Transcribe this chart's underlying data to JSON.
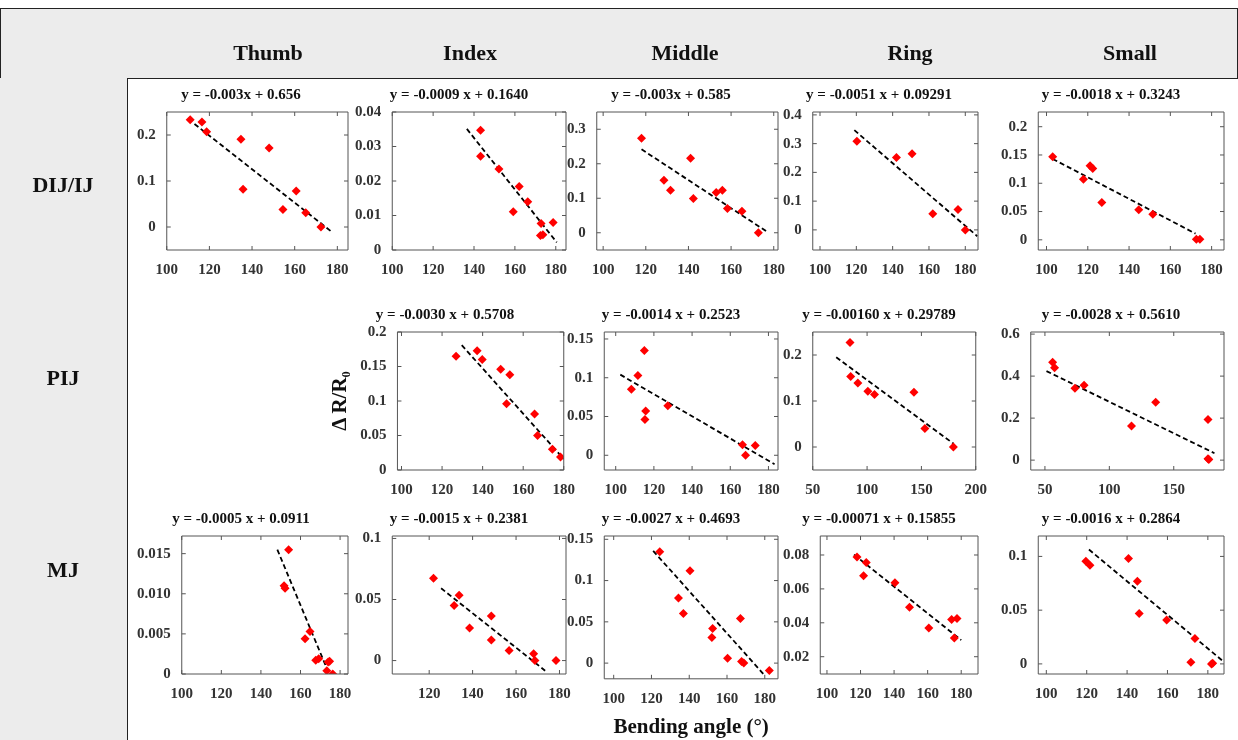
{
  "chart_data": [
    {
      "type": "other",
      "annotations": [
        "Thumb",
        "Index",
        "Middle",
        "Ring",
        "Small"
      ]
    },
    {
      "type": "other",
      "annotations": [
        "DIJ/IJ",
        "PIJ",
        "MJ"
      ]
    },
    {
      "type": "scatter",
      "title": "y = -0.003x + 0.656",
      "marker": "diamond",
      "xlim": [
        100,
        185
      ],
      "xticks": [
        100,
        120,
        140,
        160,
        180
      ],
      "ylim": [
        -0.05,
        0.25
      ],
      "yticks": [
        0,
        0.1,
        0.2
      ],
      "series": [
        {
          "color": "#ff0000",
          "x": [
            111,
            116.5,
            118.7,
            134.8,
            148,
            135.8,
            160.7,
            154.5,
            165.2,
            172.3
          ],
          "values": [
            0.233,
            0.228,
            0.207,
            0.191,
            0.172,
            0.082,
            0.078,
            0.038,
            0.031,
            0
          ]
        },
        {
          "type": "line",
          "color": "#000000",
          "marker": "none",
          "line_style": "dashed",
          "x": [
            113,
            177.5
          ],
          "values": [
            0.224,
            -0.011
          ]
        }
      ]
    },
    {
      "type": "scatter",
      "title": "y = -0.0009 x + 0.1640",
      "marker": "diamond",
      "xlim": [
        100,
        185
      ],
      "xticks": [
        100,
        120,
        140,
        160,
        180
      ],
      "ylim": [
        0,
        0.04
      ],
      "yticks": [
        0,
        0.01,
        0.02,
        0.03,
        0.04
      ],
      "series": [
        {
          "color": "#ff0000",
          "x": [
            143.2,
            143.2,
            152.2,
            162.1,
            159.2,
            166.3,
            172.8,
            172.5,
            173.7,
            178.7
          ],
          "values": [
            0.0347,
            0.0272,
            0.0235,
            0.0184,
            0.0111,
            0.014,
            0.0077,
            0.0042,
            0.0044,
            0.008
          ]
        },
        {
          "type": "line",
          "color": "#000000",
          "marker": "none",
          "line_style": "dashed",
          "x": [
            136.5,
            180.5
          ],
          "values": [
            0.0351,
            0.0022
          ]
        }
      ]
    },
    {
      "type": "scatter",
      "title": "y = -0.003x + 0.585",
      "marker": "diamond",
      "xlim": [
        97,
        182
      ],
      "xticks": [
        100,
        120,
        140,
        160,
        180
      ],
      "ylim": [
        -0.05,
        0.35
      ],
      "yticks": [
        0,
        0.1,
        0.2,
        0.3
      ],
      "series": [
        {
          "color": "#ff0000",
          "x": [
            118,
            128.5,
            131.6,
            141,
            142.3,
            153,
            155.9,
            158.3,
            165.1,
            172.8
          ],
          "values": [
            0.274,
            0.152,
            0.123,
            0.216,
            0.099,
            0.117,
            0.123,
            0.07,
            0.062,
            0
          ]
        },
        {
          "type": "line",
          "color": "#000000",
          "marker": "none",
          "line_style": "dashed",
          "x": [
            118,
            176.7
          ],
          "values": [
            0.242,
            0.0035
          ]
        }
      ]
    },
    {
      "type": "scatter",
      "title": "y = -0.0051 x + 0.09291",
      "marker": "diamond",
      "xlim": [
        96,
        187
      ],
      "xticks": [
        100,
        120,
        140,
        160,
        180
      ],
      "ylim": [
        -0.07,
        0.41
      ],
      "yticks": [
        0,
        0.1,
        0.2,
        0.3,
        0.4
      ],
      "series": [
        {
          "color": "#ff0000",
          "x": [
            120.3,
            142.1,
            150.7,
            162.1,
            176,
            180
          ],
          "values": [
            0.308,
            0.252,
            0.265,
            0.056,
            0.071,
            0
          ]
        },
        {
          "type": "line",
          "color": "#000000",
          "marker": "none",
          "line_style": "dashed",
          "x": [
            118.9,
            186.6
          ],
          "values": [
            0.347,
            -0.022
          ]
        }
      ]
    },
    {
      "type": "scatter",
      "title": "y = -0.0018 x + 0.3243",
      "marker": "diamond",
      "xlim": [
        96,
        186
      ],
      "xticks": [
        100,
        120,
        140,
        160,
        180
      ],
      "ylim": [
        -0.018,
        0.226
      ],
      "yticks": [
        0,
        0.05,
        0.1,
        0.15,
        0.2
      ],
      "series": [
        {
          "color": "#ff0000",
          "x": [
            103,
            117.9,
            121.1,
            122.4,
            126.8,
            144.7,
            151.5,
            172.6,
            174.3
          ],
          "values": [
            0.147,
            0.107,
            0.131,
            0.126,
            0.066,
            0.053,
            0.045,
            0.001,
            0.001
          ]
        },
        {
          "type": "line",
          "color": "#000000",
          "marker": "none",
          "line_style": "dashed",
          "x": [
            103,
            172.2
          ],
          "values": [
            0.143,
            0.011
          ]
        }
      ]
    },
    {
      "type": "scatter",
      "title": "y = -0.0030 x + 0.5708",
      "ylabel": "Δ R/R₀",
      "marker": "diamond",
      "xlim": [
        98,
        180
      ],
      "xticks": [
        100,
        120,
        140,
        160,
        180
      ],
      "ylim": [
        0,
        0.2
      ],
      "yticks": [
        0,
        0.05,
        0.1,
        0.15,
        0.2
      ],
      "series": [
        {
          "color": "#ff0000",
          "x": [
            126.9,
            137.3,
            139.8,
            148.9,
            153.4,
            151.8,
            165.6,
            167.1,
            174.4,
            178.4
          ],
          "values": [
            0.165,
            0.173,
            0.16,
            0.146,
            0.138,
            0.096,
            0.081,
            0.05,
            0.03,
            0.019
          ]
        },
        {
          "type": "line",
          "color": "#000000",
          "marker": "none",
          "line_style": "dashed",
          "x": [
            129.7,
            180
          ],
          "values": [
            0.181,
            0.016
          ]
        }
      ]
    },
    {
      "type": "scatter",
      "title": "y = -0.0014 x + 0.2523",
      "marker": "diamond",
      "xlim": [
        94,
        185
      ],
      "xticks": [
        100,
        120,
        140,
        160,
        180
      ],
      "ylim": [
        -0.019,
        0.159
      ],
      "yticks": [
        0,
        0.05,
        0.1,
        0.15
      ],
      "series": [
        {
          "color": "#ff0000",
          "x": [
            108.2,
            111.6,
            115,
            115.7,
            115.3,
            127.3,
            166.4,
            168,
            173.1
          ],
          "values": [
            0.085,
            0.103,
            0.135,
            0.057,
            0.046,
            0.064,
            0.0136,
            0,
            0.0127
          ]
        },
        {
          "type": "line",
          "color": "#000000",
          "marker": "none",
          "line_style": "dashed",
          "x": [
            102.4,
            183.2
          ],
          "values": [
            0.104,
            -0.0115
          ]
        }
      ]
    },
    {
      "type": "scatter",
      "title": "y = -0.00160 x + 0.29789",
      "marker": "diamond",
      "xlim": [
        50,
        200
      ],
      "xticks": [
        50,
        100,
        150,
        200
      ],
      "ylim": [
        -0.05,
        0.25
      ],
      "yticks": [
        0,
        0.1,
        0.2
      ],
      "series": [
        {
          "color": "#ff0000",
          "x": [
            84.3,
            84.9,
            91.5,
            100.7,
            106.8,
            143.1,
            153.2,
            179.4
          ],
          "values": [
            0.227,
            0.153,
            0.139,
            0.121,
            0.114,
            0.119,
            0.04,
            0
          ]
        },
        {
          "type": "line",
          "color": "#000000",
          "marker": "none",
          "line_style": "dashed",
          "x": [
            71.6,
            179.7
          ],
          "values": [
            0.195,
            0.007
          ]
        }
      ]
    },
    {
      "type": "scatter",
      "title": "y = -0.0028 x + 0.5610",
      "marker": "diamond",
      "xlim": [
        39,
        189
      ],
      "xticks": [
        50,
        100,
        150
      ],
      "ylim": [
        -0.047,
        0.61
      ],
      "yticks": [
        0,
        0.2,
        0.4,
        0.6
      ],
      "series": [
        {
          "color": "#ff0000",
          "x": [
            56,
            57.5,
            73.3,
            80.4,
            117.2,
            136,
            176.6,
            176.6,
            177.2
          ],
          "values": [
            0.466,
            0.44,
            0.342,
            0.357,
            0.162,
            0.276,
            0.193,
            0.006,
            0.003
          ]
        },
        {
          "type": "line",
          "color": "#000000",
          "marker": "none",
          "line_style": "dashed",
          "x": [
            51.2,
            181.6
          ],
          "values": [
            0.424,
            0.033
          ]
        }
      ]
    },
    {
      "type": "scatter",
      "title": "y = -0.0005 x + 0.0911",
      "marker": "diamond",
      "xlim": [
        100,
        184
      ],
      "xticks": [
        100,
        120,
        140,
        160,
        180
      ],
      "ylim": [
        0,
        0.0172
      ],
      "yticks": [
        0,
        0.005,
        {
          "value": 0.01,
          "label": "0.010"
        },
        0.015
      ],
      "series": [
        {
          "color": "#ff0000",
          "x": [
            154,
            151.7,
            152.2,
            162.3,
            164.8,
            167.7,
            169.2,
            173.3,
            174,
            174.7,
            176.3
          ],
          "values": [
            0.0155,
            0.011,
            0.0107,
            0.0044,
            0.0053,
            0.0017,
            0.0019,
            0.0004,
            0.0015,
            0.0016,
            0
          ]
        },
        {
          "type": "line",
          "color": "#000000",
          "marker": "none",
          "line_style": "dashed",
          "x": [
            148.3,
            173.8
          ],
          "values": [
            0.0155,
            0.0004
          ]
        }
      ]
    },
    {
      "type": "scatter",
      "title": "y = -0.0015 x + 0.2381",
      "marker": "diamond",
      "xlim": [
        103,
        183
      ],
      "xticks": [
        120,
        140,
        160,
        180
      ],
      "ylim": [
        -0.011,
        0.102
      ],
      "yticks": [
        0,
        0.05,
        0.1
      ],
      "series": [
        {
          "color": "#ff0000",
          "x": [
            122,
            131.5,
            133.8,
            138.6,
            148.6,
            148.6,
            156.8,
            168.1,
            168.7,
            178.4
          ],
          "values": [
            0.0675,
            0.0451,
            0.0534,
            0.0267,
            0.0365,
            0.0169,
            0.0083,
            0.0055,
            0,
            0
          ]
        },
        {
          "type": "line",
          "color": "#000000",
          "marker": "none",
          "line_style": "dashed",
          "x": [
            125.5,
            173.4
          ],
          "values": [
            0.0592,
            -0.0083
          ]
        }
      ]
    },
    {
      "type": "scatter",
      "title": "y = -0.0027 x + 0.4693",
      "xlabel": "Bending angle (°)",
      "marker": "diamond",
      "xlim": [
        95,
        187
      ],
      "xticks": [
        100,
        120,
        140,
        160,
        180
      ],
      "ylim": [
        -0.019,
        0.154
      ],
      "yticks": [
        0,
        0.05,
        0.1,
        0.15
      ],
      "series": [
        {
          "color": "#ff0000",
          "x": [
            124.4,
            134.3,
            136.9,
            140.4,
            152.4,
            152,
            167.1,
            160.3,
            167.7,
            168.9,
            182.4
          ],
          "values": [
            0.135,
            0.079,
            0.06,
            0.112,
            0.042,
            0.031,
            0.054,
            0.006,
            0.002,
            0,
            -0.009
          ]
        },
        {
          "type": "line",
          "color": "#000000",
          "marker": "none",
          "line_style": "dashed",
          "x": [
            120.9,
            180
          ],
          "values": [
            0.136,
            -0.015
          ]
        }
      ]
    },
    {
      "type": "scatter",
      "title": "y = -0.00071 x + 0.15855",
      "marker": "diamond",
      "xlim": [
        96,
        190
      ],
      "xticks": [
        100,
        120,
        140,
        160,
        180
      ],
      "ylim": [
        0.0098,
        0.0912
      ],
      "yticks": [
        0.02,
        0.04,
        0.06,
        0.08
      ],
      "series": [
        {
          "color": "#ff0000",
          "x": [
            117.9,
            121.8,
            123.4,
            140.5,
            149.2,
            160.7,
            174.3,
            177.5,
            175.9
          ],
          "values": [
            0.0788,
            0.0678,
            0.0755,
            0.0636,
            0.0492,
            0.037,
            0.0419,
            0.0426,
            0.031
          ]
        },
        {
          "type": "line",
          "color": "#000000",
          "marker": "none",
          "line_style": "dashed",
          "x": [
            116.1,
            180
          ],
          "values": [
            0.0802,
            0.0298
          ]
        }
      ]
    },
    {
      "type": "scatter",
      "title": "y = -0.0016 x + 0.2864",
      "marker": "diamond",
      "xlim": [
        96,
        188
      ],
      "xticks": [
        100,
        120,
        140,
        160,
        180
      ],
      "ylim": [
        -0.0094,
        0.119
      ],
      "yticks": [
        0,
        0.05,
        0.1
      ],
      "series": [
        {
          "color": "#ff0000",
          "x": [
            119.6,
            121.6,
            140.7,
            145.1,
            146,
            159.6,
            171.6,
            173.6,
            181.8,
            182.4
          ],
          "values": [
            0.0955,
            0.0918,
            0.0981,
            0.0768,
            0.0468,
            0.0408,
            0.0015,
            0.0236,
            0,
            0.0007
          ]
        },
        {
          "type": "line",
          "color": "#000000",
          "marker": "none",
          "line_style": "dashed",
          "x": [
            121.1,
            187.5
          ],
          "values": [
            0.1064,
            0.0026
          ]
        }
      ]
    }
  ]
}
